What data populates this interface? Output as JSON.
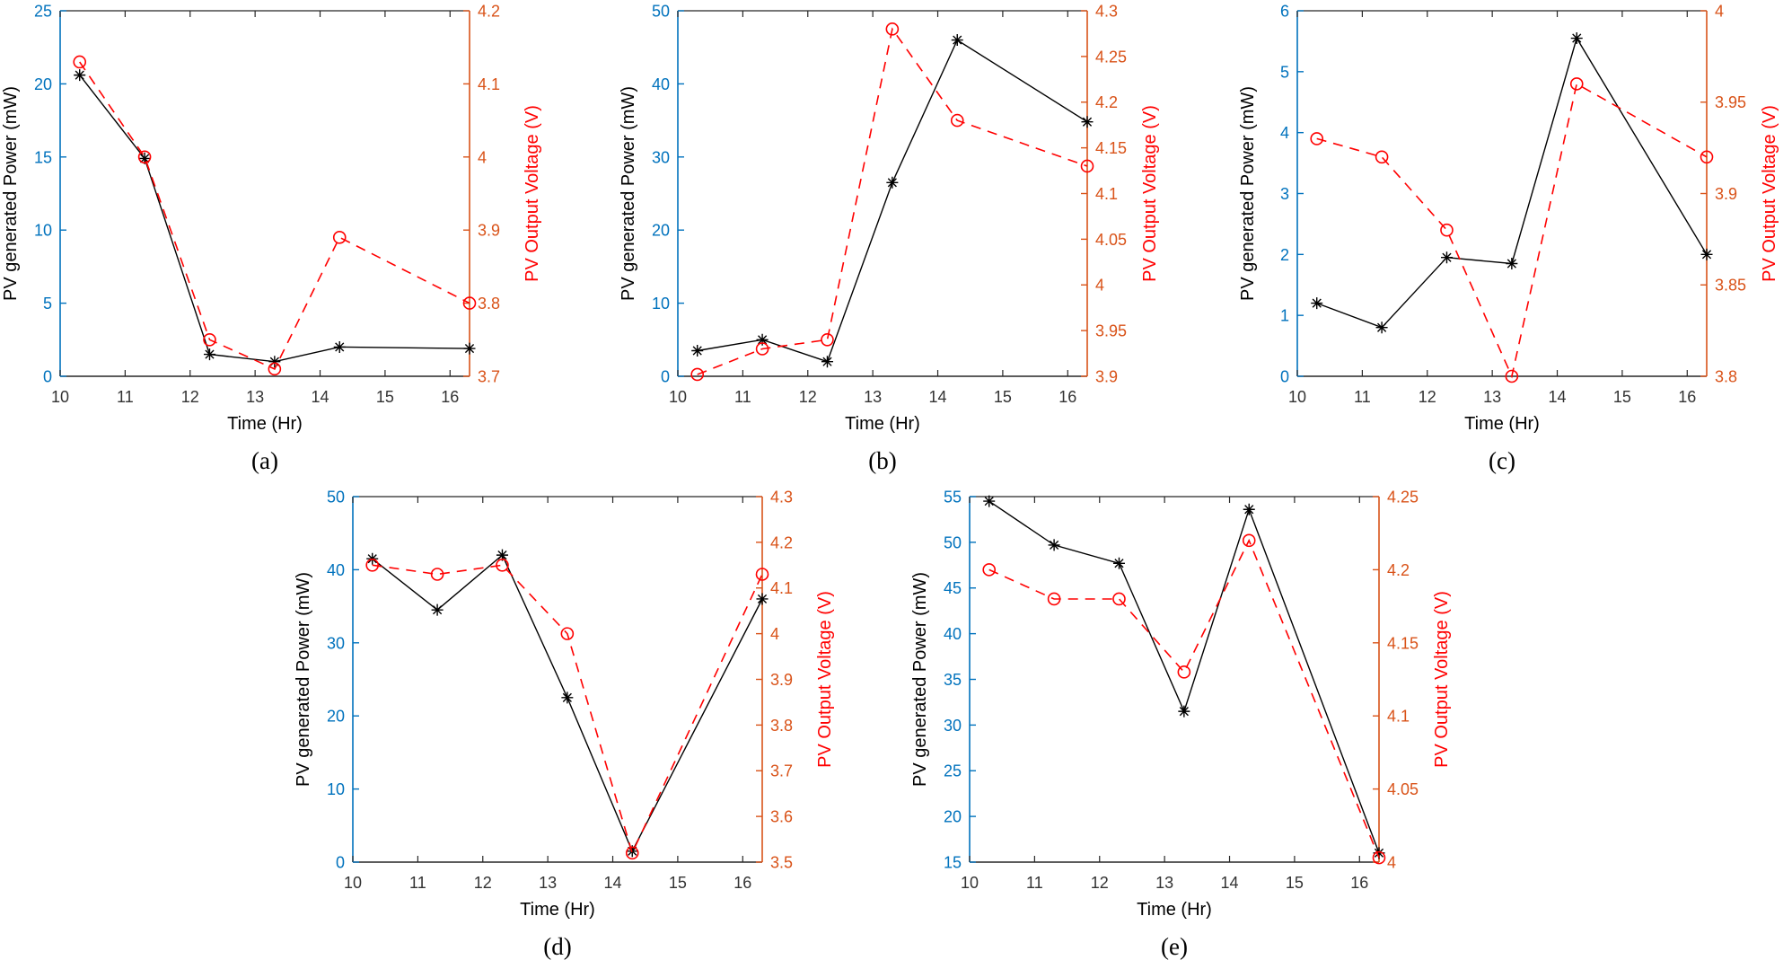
{
  "figure": {
    "colors": {
      "left_axis": "#0072BD",
      "right_axis": "#D95319",
      "right_ylabel": "#FF0000",
      "power_line": "#000000",
      "voltage_line": "#FF0000",
      "frame": "#262626",
      "x_tick_text": "#333333",
      "xlabel_text": "#000000"
    }
  },
  "chart_data": [
    {
      "id": "a",
      "type": "line",
      "tag": "(a)",
      "xlabel": "Time (Hr)",
      "ylabel_left": "PV generated Power (mW)",
      "ylabel_right": "PV Output Voltage  (V)",
      "grid": false,
      "legend": null,
      "xlim": [
        10,
        16.3
      ],
      "xticks": [
        "10",
        "11",
        "12",
        "13",
        "14",
        "15",
        "16"
      ],
      "x": [
        10.3,
        11.3,
        12.3,
        13.3,
        14.3,
        16.3
      ],
      "ylim_left": [
        0,
        25
      ],
      "yticks_left": [
        "0",
        "5",
        "10",
        "15",
        "20",
        "25"
      ],
      "ylim_right": [
        3.7,
        4.2
      ],
      "yticks_right": [
        "3.7",
        "3.8",
        "3.9",
        "4",
        "4.1",
        "4.2"
      ],
      "series": [
        {
          "name": "PV generated Power",
          "axis": "left",
          "line": "solid",
          "marker": "asterisk",
          "values": [
            20.6,
            14.9,
            1.5,
            1.0,
            2.0,
            1.9
          ]
        },
        {
          "name": "PV Output Voltage",
          "axis": "right",
          "line": "dashed",
          "marker": "circle",
          "values": [
            4.13,
            4.0,
            3.75,
            3.71,
            3.89,
            3.8
          ]
        }
      ]
    },
    {
      "id": "b",
      "type": "line",
      "tag": "(b)",
      "xlabel": "Time (Hr)",
      "ylabel_left": "PV generated Power (mW)",
      "ylabel_right": "PV Output Voltage  (V)",
      "grid": false,
      "legend": null,
      "xlim": [
        10,
        16.3
      ],
      "xticks": [
        "10",
        "11",
        "12",
        "13",
        "14",
        "15",
        "16"
      ],
      "x": [
        10.3,
        11.3,
        12.3,
        13.3,
        14.3,
        16.3
      ],
      "ylim_left": [
        0,
        50
      ],
      "yticks_left": [
        "0",
        "10",
        "20",
        "30",
        "40",
        "50"
      ],
      "ylim_right": [
        3.9,
        4.3
      ],
      "yticks_right": [
        "3.9",
        "3.95",
        "4",
        "4.05",
        "4.1",
        "4.15",
        "4.2",
        "4.25",
        "4.3"
      ],
      "series": [
        {
          "name": "PV generated Power",
          "axis": "left",
          "line": "solid",
          "marker": "asterisk",
          "values": [
            3.5,
            5.0,
            2.0,
            26.5,
            46.0,
            34.8
          ]
        },
        {
          "name": "PV Output Voltage",
          "axis": "right",
          "line": "dashed",
          "marker": "circle",
          "values": [
            3.902,
            3.93,
            3.94,
            4.28,
            4.18,
            4.13
          ]
        }
      ]
    },
    {
      "id": "c",
      "type": "line",
      "tag": "(c)",
      "xlabel": "Time (Hr)",
      "ylabel_left": "PV generated Power (mW)",
      "ylabel_right": "PV Output Voltage  (V)",
      "grid": false,
      "legend": null,
      "xlim": [
        10,
        16.3
      ],
      "xticks": [
        "10",
        "11",
        "12",
        "13",
        "14",
        "15",
        "16"
      ],
      "x": [
        10.3,
        11.3,
        12.3,
        13.3,
        14.3,
        16.3
      ],
      "ylim_left": [
        0,
        6
      ],
      "yticks_left": [
        "0",
        "1",
        "2",
        "3",
        "4",
        "5",
        "6"
      ],
      "ylim_right": [
        3.8,
        4.0
      ],
      "yticks_right": [
        "3.8",
        "3.85",
        "3.9",
        "3.95",
        "4"
      ],
      "series": [
        {
          "name": "PV generated Power",
          "axis": "left",
          "line": "solid",
          "marker": "asterisk",
          "values": [
            1.2,
            0.8,
            1.95,
            1.85,
            5.55,
            2.0
          ]
        },
        {
          "name": "PV Output Voltage",
          "axis": "right",
          "line": "dashed",
          "marker": "circle",
          "values": [
            3.93,
            3.92,
            3.88,
            3.8,
            3.96,
            3.92
          ]
        }
      ]
    },
    {
      "id": "d",
      "type": "line",
      "tag": "(d)",
      "xlabel": "Time (Hr)",
      "ylabel_left": "PV generated Power (mW)",
      "ylabel_right": "PV Output Voltage  (V)",
      "grid": false,
      "legend": null,
      "xlim": [
        10,
        16.3
      ],
      "xticks": [
        "10",
        "11",
        "12",
        "13",
        "14",
        "15",
        "16"
      ],
      "x": [
        10.3,
        11.3,
        12.3,
        13.3,
        14.3,
        16.3
      ],
      "ylim_left": [
        0,
        50
      ],
      "yticks_left": [
        "0",
        "10",
        "20",
        "30",
        "40",
        "50"
      ],
      "ylim_right": [
        3.5,
        4.3
      ],
      "yticks_right": [
        "3.5",
        "3.6",
        "3.7",
        "3.8",
        "3.9",
        "4",
        "4.1",
        "4.2",
        "4.3"
      ],
      "series": [
        {
          "name": "PV generated Power",
          "axis": "left",
          "line": "solid",
          "marker": "asterisk",
          "values": [
            41.5,
            34.5,
            42.0,
            22.5,
            1.5,
            36.0
          ]
        },
        {
          "name": "PV Output Voltage",
          "axis": "right",
          "line": "dashed",
          "marker": "circle",
          "values": [
            4.15,
            4.13,
            4.15,
            4.0,
            3.52,
            4.13
          ]
        }
      ]
    },
    {
      "id": "e",
      "type": "line",
      "tag": "(e)",
      "xlabel": "Time (Hr)",
      "ylabel_left": "PV generated Power (mW)",
      "ylabel_right": "PV Output Voltage  (V)",
      "grid": false,
      "legend": null,
      "xlim": [
        10,
        16.3
      ],
      "xticks": [
        "10",
        "11",
        "12",
        "13",
        "14",
        "15",
        "16"
      ],
      "x": [
        10.3,
        11.3,
        12.3,
        13.3,
        14.3,
        16.3
      ],
      "ylim_left": [
        15,
        55
      ],
      "yticks_left": [
        "15",
        "20",
        "25",
        "30",
        "35",
        "40",
        "45",
        "50",
        "55"
      ],
      "ylim_right": [
        4.0,
        4.25
      ],
      "yticks_right": [
        "4",
        "4.05",
        "4.1",
        "4.15",
        "4.2",
        "4.25"
      ],
      "series": [
        {
          "name": "PV generated Power",
          "axis": "left",
          "line": "solid",
          "marker": "asterisk",
          "values": [
            54.5,
            49.7,
            47.7,
            31.5,
            53.6,
            16.0
          ]
        },
        {
          "name": "PV Output Voltage",
          "axis": "right",
          "line": "dashed",
          "marker": "circle",
          "values": [
            4.2,
            4.18,
            4.18,
            4.13,
            4.22,
            4.003
          ]
        }
      ]
    }
  ]
}
